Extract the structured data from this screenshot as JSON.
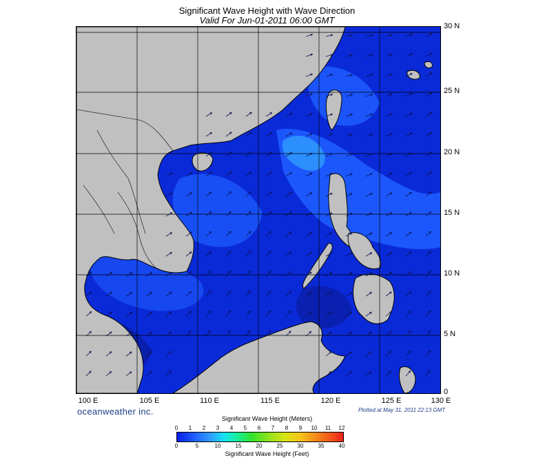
{
  "header": {
    "title": "Significant Wave Height with Wave Direction",
    "subtitle": "Valid For Jun-01-2011 06:00 GMT"
  },
  "map": {
    "latitude_labels": [
      "30 N",
      "25 N",
      "20 N",
      "15 N",
      "10 N",
      "5 N",
      "0"
    ],
    "longitude_labels": [
      "100 E",
      "105 E",
      "110 E",
      "115 E",
      "120 E",
      "125 E",
      "130 E"
    ],
    "colors": {
      "land": "#c0c0c0",
      "ocean_base": "#0a2ad8",
      "ocean_mid": "#1e5cff",
      "ocean_light": "#2f9dff",
      "ocean_dark": "#0a1ea8",
      "arrow": "#0b1250"
    },
    "prevailing_direction": "southwest wind; arrows point toward northeast"
  },
  "footer": {
    "brand": "oceanweather inc.",
    "plotted": "Plotted at May 31, 2011 22:13 GMT"
  },
  "colorbar": {
    "title_top": "Significant Wave Height (Meters)",
    "title_bottom": "Significant Wave Height (Feet)",
    "meters": [
      "0",
      "1",
      "2",
      "3",
      "4",
      "5",
      "6",
      "7",
      "8",
      "9",
      "10",
      "11",
      "12"
    ],
    "feet": [
      "0",
      "5",
      "10",
      "15",
      "20",
      "25",
      "30",
      "35",
      "40"
    ]
  }
}
